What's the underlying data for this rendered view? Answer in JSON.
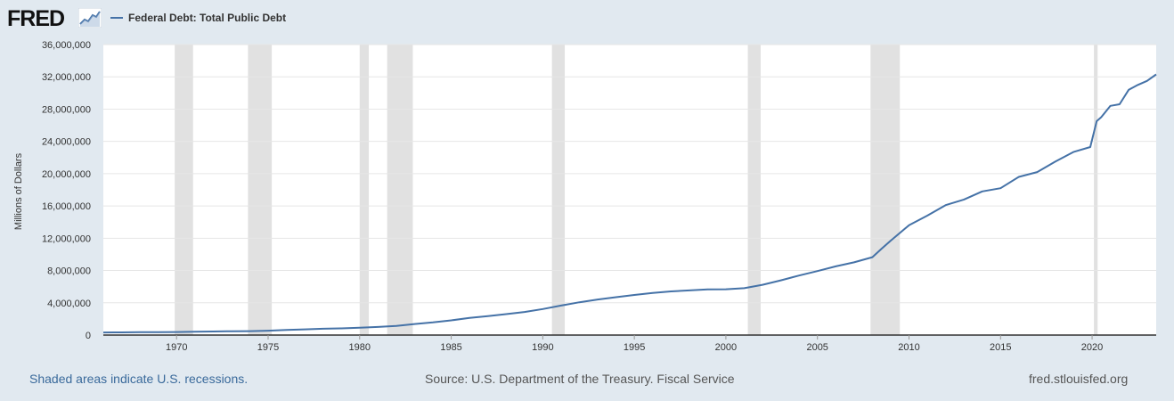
{
  "header": {
    "logo_text": "FRED",
    "legend_label": "Federal Debt: Total Public Debt"
  },
  "footer": {
    "recession_note": "Shaded areas indicate U.S. recessions.",
    "source": "Source: U.S. Department of the Treasury. Fiscal Service",
    "site": "fred.stlouisfed.org"
  },
  "colors": {
    "line": "#4572a7",
    "recession": "#e1e1e1",
    "grid": "#e6e6e6",
    "background": "#e1e9f0"
  },
  "chart_data": {
    "type": "line",
    "title": "Federal Debt: Total Public Debt",
    "xlabel": "",
    "ylabel": "Millions of Dollars",
    "xlim": [
      1966.0,
      2023.5
    ],
    "ylim": [
      0,
      36000000
    ],
    "x_ticks": [
      1970,
      1975,
      1980,
      1985,
      1990,
      1995,
      2000,
      2005,
      2010,
      2015,
      2020
    ],
    "y_ticks": [
      0,
      4000000,
      8000000,
      12000000,
      16000000,
      20000000,
      24000000,
      28000000,
      32000000,
      36000000
    ],
    "y_tick_labels": [
      "0",
      "4,000,000",
      "8,000,000",
      "12,000,000",
      "16,000,000",
      "20,000,000",
      "24,000,000",
      "28,000,000",
      "32,000,000",
      "36,000,000"
    ],
    "grid": true,
    "recessions": [
      [
        1969.9,
        1970.9
      ],
      [
        1973.9,
        1975.2
      ],
      [
        1980.0,
        1980.5
      ],
      [
        1981.5,
        1982.9
      ],
      [
        1990.5,
        1991.2
      ],
      [
        2001.2,
        2001.9
      ],
      [
        2007.9,
        2009.5
      ],
      [
        2020.1,
        2020.3
      ]
    ],
    "series": [
      {
        "name": "Federal Debt: Total Public Debt",
        "x": [
          1966.0,
          1967.0,
          1968.0,
          1969.0,
          1970.0,
          1971.0,
          1972.0,
          1973.0,
          1974.0,
          1975.0,
          1976.0,
          1977.0,
          1978.0,
          1979.0,
          1980.0,
          1981.0,
          1982.0,
          1983.0,
          1984.0,
          1985.0,
          1986.0,
          1987.0,
          1988.0,
          1989.0,
          1990.0,
          1991.0,
          1992.0,
          1993.0,
          1994.0,
          1995.0,
          1996.0,
          1997.0,
          1998.0,
          1999.0,
          2000.0,
          2001.0,
          2002.0,
          2003.0,
          2004.0,
          2005.0,
          2006.0,
          2007.0,
          2008.0,
          2008.5,
          2009.0,
          2010.0,
          2011.0,
          2012.0,
          2013.0,
          2014.0,
          2015.0,
          2016.0,
          2017.0,
          2018.0,
          2019.0,
          2019.9,
          2020.25,
          2020.5,
          2021.0,
          2021.5,
          2022.0,
          2022.5,
          2023.0,
          2023.5
        ],
        "values": [
          320000,
          330000,
          350000,
          360000,
          380000,
          410000,
          440000,
          470000,
          490000,
          540000,
          630000,
          710000,
          780000,
          830000,
          910000,
          1000000,
          1140000,
          1370000,
          1570000,
          1820000,
          2130000,
          2350000,
          2600000,
          2860000,
          3230000,
          3660000,
          4060000,
          4410000,
          4690000,
          4970000,
          5220000,
          5410000,
          5530000,
          5660000,
          5680000,
          5810000,
          6230000,
          6780000,
          7380000,
          7930000,
          8510000,
          9010000,
          9650000,
          10700000,
          11700000,
          13600000,
          14800000,
          16100000,
          16800000,
          17800000,
          18200000,
          19600000,
          20200000,
          21500000,
          22700000,
          23300000,
          26500000,
          27000000,
          28400000,
          28600000,
          30400000,
          31000000,
          31500000,
          32300000
        ]
      }
    ]
  }
}
